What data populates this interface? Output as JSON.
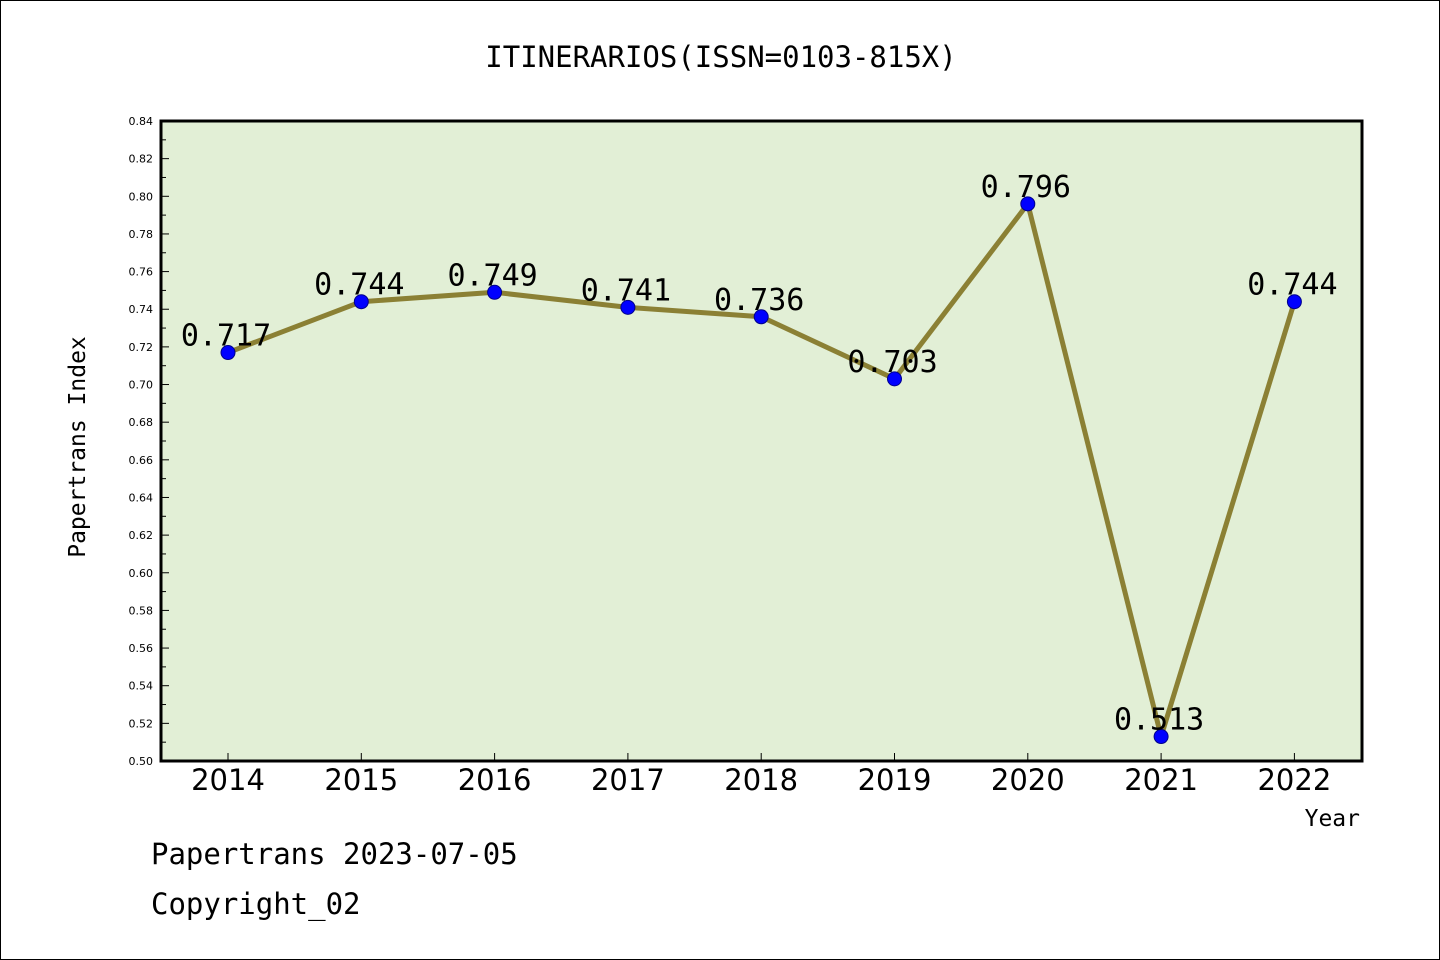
{
  "footer": {
    "line1": "Papertrans 2023-07-05",
    "line2": "Copyright_02"
  },
  "colors": {
    "plot_background": "#e2efd6",
    "line": "#8b8034",
    "marker_fill": "#0000ff",
    "marker_stroke": "#00008b",
    "frame": "#000000"
  },
  "chart_data": {
    "type": "line",
    "title": "ITINERARIOS(ISSN=0103-815X)",
    "xlabel": "Year",
    "ylabel": "Papertrans Index",
    "categories": [
      "2014",
      "2015",
      "2016",
      "2017",
      "2018",
      "2019",
      "2020",
      "2021",
      "2022"
    ],
    "series": [
      {
        "values": [
          0.717,
          0.744,
          0.749,
          0.741,
          0.736,
          0.703,
          0.796,
          0.513,
          0.744
        ],
        "labels": [
          "0.717",
          "0.744",
          "0.749",
          "0.741",
          "0.736",
          "0.703",
          "0.796",
          "0.513",
          "0.744"
        ],
        "marker": "circle"
      }
    ],
    "ylim": [
      0.5,
      0.84
    ],
    "yticks": [
      "0.50",
      "0.52",
      "0.54",
      "0.56",
      "0.58",
      "0.60",
      "0.62",
      "0.64",
      "0.66",
      "0.68",
      "0.70",
      "0.72",
      "0.74",
      "0.76",
      "0.78",
      "0.80",
      "0.82",
      "0.84"
    ],
    "grid": false,
    "legend": "none"
  }
}
